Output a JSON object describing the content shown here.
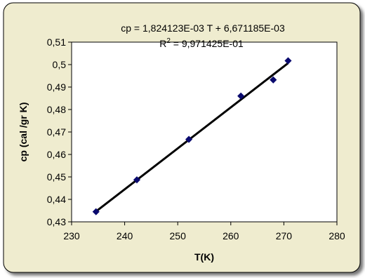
{
  "chart_data": {
    "type": "scatter",
    "xlabel": "T(K)",
    "ylabel": "cp (cal /gr K)",
    "xlim": [
      230,
      280
    ],
    "ylim": [
      0.43,
      0.51
    ],
    "x_ticks": [
      230,
      240,
      250,
      260,
      270,
      280
    ],
    "y_ticks": [
      0.43,
      0.44,
      0.45,
      0.46,
      0.47,
      0.48,
      0.49,
      0.5,
      0.51
    ],
    "x_tick_labels": [
      "230",
      "240",
      "250",
      "260",
      "270",
      "280"
    ],
    "y_tick_labels": [
      "0,43",
      "0,44",
      "0,45",
      "0,46",
      "0,47",
      "0,48",
      "0,49",
      "0,5",
      "0,51"
    ],
    "grid": false,
    "legend": "none",
    "points": [
      {
        "x": 234.6,
        "y": 0.4345
      },
      {
        "x": 242.3,
        "y": 0.4487
      },
      {
        "x": 252.1,
        "y": 0.4667
      },
      {
        "x": 261.9,
        "y": 0.486
      },
      {
        "x": 268.0,
        "y": 0.4932
      },
      {
        "x": 270.8,
        "y": 0.5017
      }
    ],
    "trendline": {
      "type": "linear",
      "slope": 0.001824123,
      "intercept": 0.006671185,
      "x_range": [
        234.6,
        270.8
      ]
    },
    "annotations": {
      "equation": "cp = 1,824123E-03 T + 6,671185E-03",
      "r2_prefix": "R",
      "r2_sup": "2",
      "r2_value": " = 9,971425E-01"
    },
    "colors": {
      "panel_background": "#efeccf",
      "plot_background": "#ffffff",
      "marker": "#0a0a6e",
      "trendline": "#000000",
      "frame": "#000000"
    }
  }
}
